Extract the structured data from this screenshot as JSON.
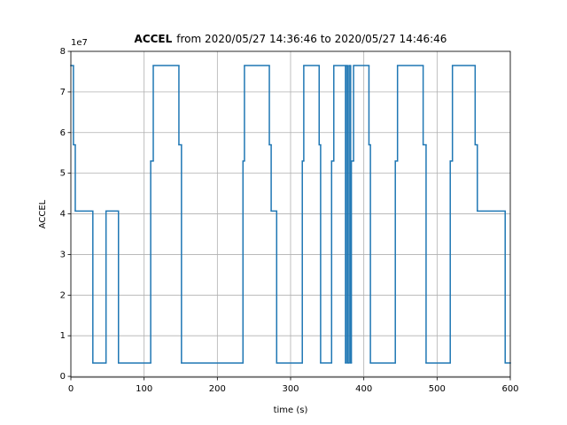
{
  "chart_data": {
    "type": "step",
    "title_bold": "ACCEL",
    "title": "from 2020/05/27 14:36:46 to 2020/05/27 14:46:46",
    "x_label": "time (s)",
    "y_label": "ACCEL",
    "y_offset_label": "1e7",
    "drawstyle": "steps-post",
    "color": "#1f77b4",
    "grid": true,
    "x": [
      0,
      3.5,
      6,
      30,
      48,
      65,
      109,
      112.5,
      147.5,
      151,
      235,
      237,
      271,
      273.5,
      281,
      316,
      318,
      339,
      341,
      356,
      359,
      375,
      376,
      378,
      380,
      382,
      383,
      386,
      407,
      409,
      443,
      446,
      481,
      485,
      518,
      521,
      552,
      555,
      593
    ],
    "values": [
      7.65,
      5.7,
      4.07,
      0.33,
      4.07,
      0.33,
      5.3,
      7.65,
      5.7,
      0.33,
      5.3,
      7.65,
      5.7,
      4.07,
      0.33,
      5.3,
      7.65,
      5.7,
      0.33,
      5.3,
      7.65,
      0.33,
      7.65,
      0.33,
      7.65,
      0.33,
      5.3,
      7.65,
      5.7,
      0.33,
      5.3,
      7.65,
      5.7,
      0.33,
      5.3,
      7.65,
      5.7,
      4.07,
      0.33
    ],
    "xlim": [
      0,
      600
    ],
    "xticks": [
      0,
      100,
      200,
      300,
      400,
      500,
      600
    ],
    "ylim": [
      -0.02,
      8
    ],
    "yticks": [
      0,
      1,
      2,
      3,
      4,
      5,
      6,
      7,
      8
    ]
  }
}
